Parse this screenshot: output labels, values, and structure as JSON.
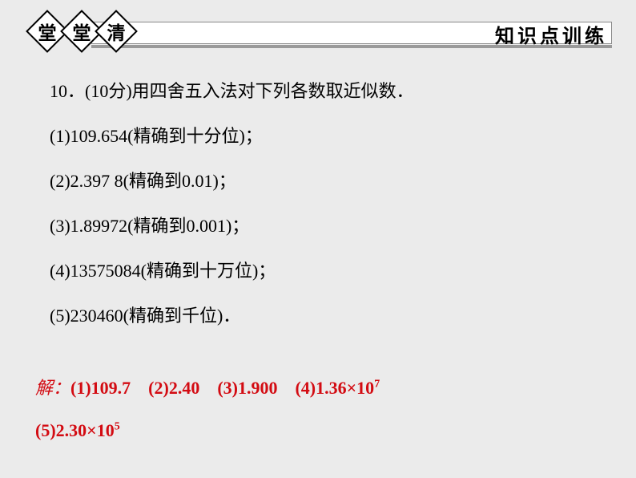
{
  "header": {
    "diamonds": [
      "堂",
      "堂",
      "清"
    ],
    "right_title": "知识点训练"
  },
  "content": {
    "intro": "10．(10分)用四舍五入法对下列各数取近似数．",
    "items": [
      "(1)109.654(精确到十分位)；",
      "(2)2.397 8(精确到0.01)；",
      "(3)1.89972(精确到0.001)；",
      "(4)13575084(精确到十万位)；",
      "(5)230460(精确到千位)．"
    ]
  },
  "solution": {
    "label": "解：",
    "parts": [
      "(1)109.7",
      "(2)2.40",
      "(3)1.900",
      "(4)1.36×10",
      "(5)2.30×10"
    ],
    "exponents": {
      "part4": "7",
      "part5": "5"
    }
  },
  "colors": {
    "page_bg": "#ebebeb",
    "text": "#000000",
    "solution": "#d30b12",
    "gray_bar": "#9a9a9a",
    "white": "#ffffff"
  },
  "fonts": {
    "body_size": 22,
    "diamond_size": 23,
    "right_title_size": 24
  }
}
